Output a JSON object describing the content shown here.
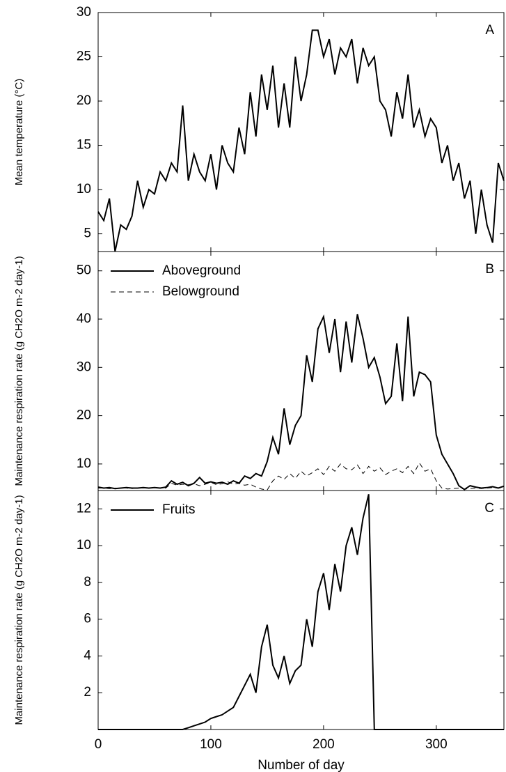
{
  "chart_data": [
    {
      "type": "line",
      "label": "A",
      "ylabel": "Mean temperature (°C)",
      "x": [
        0,
        5,
        10,
        15,
        20,
        25,
        30,
        35,
        40,
        45,
        50,
        55,
        60,
        65,
        70,
        75,
        80,
        85,
        90,
        95,
        100,
        105,
        110,
        115,
        120,
        125,
        130,
        135,
        140,
        145,
        150,
        155,
        160,
        165,
        170,
        175,
        180,
        185,
        190,
        195,
        200,
        205,
        210,
        215,
        220,
        225,
        230,
        235,
        240,
        245,
        250,
        255,
        260,
        265,
        270,
        275,
        280,
        285,
        290,
        295,
        300,
        305,
        310,
        315,
        320,
        325,
        330,
        335,
        340,
        345,
        350,
        355,
        360
      ],
      "series": [
        {
          "color": "#000000",
          "style": "solid",
          "values": [
            7.5,
            6.5,
            9,
            3,
            6,
            5.5,
            7,
            11,
            8,
            10,
            9.5,
            12,
            11,
            13,
            12,
            19.5,
            11,
            14,
            12,
            11,
            14,
            10,
            15,
            13,
            12,
            17,
            14,
            21,
            16,
            23,
            19,
            24,
            17,
            22,
            17,
            25,
            20,
            23,
            28,
            28,
            25,
            27,
            23,
            26,
            25,
            27,
            22,
            26,
            24,
            25,
            20,
            19,
            16,
            21,
            18,
            23,
            17,
            19,
            16,
            18,
            17,
            13,
            15,
            11,
            13,
            9,
            11,
            5,
            10,
            6,
            4,
            13,
            11
          ]
        }
      ],
      "xlim": [
        0,
        360
      ],
      "xticks": [
        0,
        100,
        200,
        300
      ],
      "ylim": [
        3,
        30
      ],
      "yticks": [
        5,
        10,
        15,
        20,
        25,
        30
      ]
    },
    {
      "type": "line",
      "label": "B",
      "ylabel": "Maintenance respiration rate (g CH2O m-2 day-1)",
      "x": [
        0,
        5,
        10,
        15,
        20,
        25,
        30,
        35,
        40,
        45,
        50,
        55,
        60,
        65,
        70,
        75,
        80,
        85,
        90,
        95,
        100,
        105,
        110,
        115,
        120,
        125,
        130,
        135,
        140,
        145,
        150,
        155,
        160,
        165,
        170,
        175,
        180,
        185,
        190,
        195,
        200,
        205,
        210,
        215,
        220,
        225,
        230,
        235,
        240,
        245,
        250,
        255,
        260,
        265,
        270,
        275,
        280,
        285,
        290,
        295,
        300,
        305,
        310,
        315,
        320,
        325,
        330,
        335,
        340,
        345,
        350,
        355,
        360
      ],
      "series": [
        {
          "name": "Aboveground",
          "color": "#000000",
          "style": "solid",
          "values": [
            5.2,
            5.0,
            5.1,
            4.9,
            5.0,
            5.1,
            5.0,
            5.0,
            5.1,
            5.0,
            5.1,
            5.0,
            5.2,
            6.5,
            5.8,
            6.2,
            5.5,
            6.0,
            7.2,
            6.0,
            6.3,
            6.0,
            6.2,
            5.8,
            6.5,
            6.0,
            7.5,
            7.0,
            8.0,
            7.5,
            10.5,
            15.5,
            12.0,
            21.5,
            14.0,
            18.0,
            20.0,
            32.5,
            27.0,
            38.0,
            40.5,
            33.0,
            40.0,
            29.0,
            39.5,
            31.0,
            41.0,
            36.0,
            30.0,
            32.0,
            28.0,
            22.5,
            24.0,
            35.0,
            23.0,
            40.5,
            24.0,
            29.0,
            28.5,
            27.0,
            16.0,
            12.0,
            10.0,
            8.0,
            5.5,
            4.7,
            5.5,
            5.2,
            5.0,
            5.1,
            5.3,
            5.0,
            5.4
          ]
        },
        {
          "name": "Belowground",
          "color": "#000000",
          "style": "dash",
          "values": [
            5.0,
            5.0,
            4.9,
            5.0,
            5.0,
            5.0,
            4.9,
            5.0,
            5.0,
            5.0,
            5.0,
            5.0,
            5.0,
            6.0,
            5.6,
            5.8,
            5.7,
            5.9,
            5.5,
            5.8,
            6.2,
            5.7,
            5.9,
            6.3,
            5.8,
            6.0,
            5.6,
            5.8,
            5.2,
            4.8,
            4.6,
            6.5,
            7.5,
            6.8,
            8.0,
            7.0,
            8.5,
            7.5,
            8.2,
            9.0,
            7.8,
            9.5,
            8.5,
            10.0,
            9.0,
            8.8,
            9.8,
            8.0,
            9.5,
            8.5,
            9.2,
            7.8,
            8.5,
            9.0,
            8.2,
            9.5,
            8.0,
            10.2,
            8.5,
            9.0,
            6.5,
            5.0,
            4.8,
            4.9,
            5.0,
            4.8,
            4.9,
            5.0,
            4.9,
            5.0,
            5.1,
            5.0,
            5.0
          ]
        }
      ],
      "xlim": [
        0,
        360
      ],
      "xticks": [
        0,
        100,
        200,
        300
      ],
      "ylim": [
        4.5,
        54
      ],
      "yticks": [
        10,
        20,
        30,
        40,
        50
      ]
    },
    {
      "type": "line",
      "label": "C",
      "ylabel": "Maintenance respiration rate (g CH2O m-2 day-1)",
      "xlabel": "Number of day",
      "x": [
        0,
        5,
        10,
        15,
        20,
        25,
        30,
        35,
        40,
        45,
        50,
        55,
        60,
        65,
        70,
        75,
        80,
        85,
        90,
        95,
        100,
        105,
        110,
        115,
        120,
        125,
        130,
        135,
        140,
        145,
        150,
        155,
        160,
        165,
        170,
        175,
        180,
        185,
        190,
        195,
        200,
        205,
        210,
        215,
        220,
        225,
        230,
        235,
        240,
        245,
        250,
        255,
        260,
        265,
        270,
        275,
        280,
        285,
        290,
        295,
        300,
        305,
        310,
        315,
        320,
        325,
        330,
        335,
        340,
        345,
        350,
        355,
        360
      ],
      "series": [
        {
          "name": "Fruits",
          "color": "#000000",
          "style": "solid",
          "values": [
            0,
            0,
            0,
            0,
            0,
            0,
            0,
            0,
            0,
            0,
            0,
            0,
            0,
            0,
            0,
            0,
            0.1,
            0.2,
            0.3,
            0.4,
            0.6,
            0.7,
            0.8,
            1.0,
            1.2,
            1.8,
            2.4,
            3.0,
            2.0,
            4.5,
            5.7,
            3.5,
            2.8,
            4.0,
            2.5,
            3.2,
            3.5,
            6.0,
            4.5,
            7.5,
            8.5,
            6.5,
            9.0,
            7.5,
            10.0,
            11.0,
            9.5,
            11.5,
            12.8,
            0,
            0,
            0,
            0,
            0,
            0,
            0,
            0,
            0,
            0,
            0,
            0,
            0,
            0,
            0,
            0,
            0,
            0,
            0,
            0,
            0,
            0,
            0,
            0
          ]
        }
      ],
      "xlim": [
        0,
        360
      ],
      "xticks": [
        0,
        100,
        200,
        300
      ],
      "ylim": [
        0,
        13
      ],
      "yticks": [
        2,
        4,
        6,
        8,
        10,
        12
      ]
    }
  ]
}
